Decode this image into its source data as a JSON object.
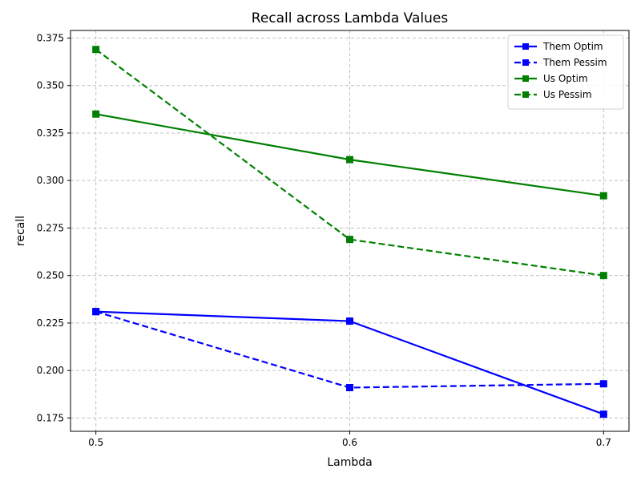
{
  "chart_data": {
    "type": "line",
    "title": "Recall across Lambda Values",
    "xlabel": "Lambda",
    "ylabel": "recall",
    "x": [
      0.5,
      0.6,
      0.7
    ],
    "x_tick_labels": [
      "0.5",
      "0.6",
      "0.7"
    ],
    "xlim": [
      0.49,
      0.71
    ],
    "ylim": [
      0.168,
      0.379
    ],
    "y_ticks": [
      0.175,
      0.2,
      0.225,
      0.25,
      0.275,
      0.3,
      0.325,
      0.35,
      0.375
    ],
    "y_tick_labels": [
      "0.175",
      "0.200",
      "0.225",
      "0.250",
      "0.275",
      "0.300",
      "0.325",
      "0.350",
      "0.375"
    ],
    "grid": true,
    "legend_position": "top-right",
    "series": [
      {
        "name": "Them Optim",
        "values": [
          0.231,
          0.226,
          0.177
        ],
        "color": "#0000ff",
        "linestyle": "solid",
        "marker": "square"
      },
      {
        "name": "Them Pessim",
        "values": [
          0.231,
          0.191,
          0.193
        ],
        "color": "#0000ff",
        "linestyle": "dashed",
        "marker": "square"
      },
      {
        "name": "Us Optim",
        "values": [
          0.335,
          0.311,
          0.292
        ],
        "color": "#008000",
        "linestyle": "solid",
        "marker": "square"
      },
      {
        "name": "Us Pessim",
        "values": [
          0.369,
          0.269,
          0.25
        ],
        "color": "#008000",
        "linestyle": "dashed",
        "marker": "square"
      }
    ]
  }
}
